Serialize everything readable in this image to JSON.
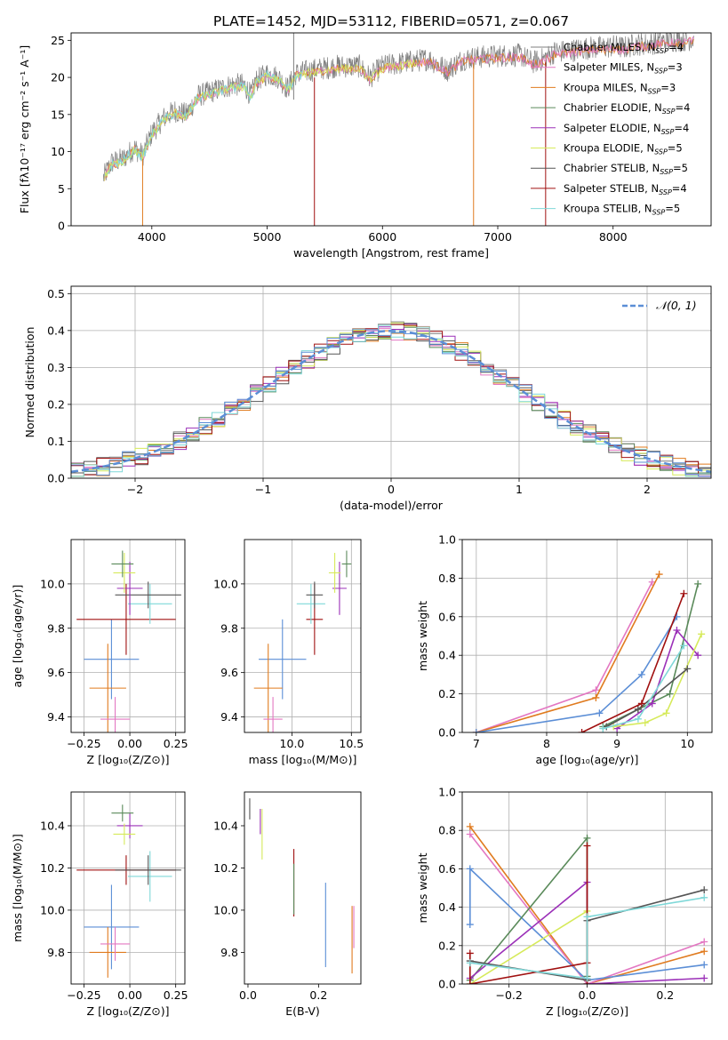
{
  "title": "PLATE=1452, MJD=53112, FIBERID=0571, z=0.067",
  "colors": {
    "cmiles": "#7f7f7f",
    "smiles": "#e377c2",
    "kmiles": "#e07b1f",
    "celodie": "#5a8a5a",
    "selodie": "#9b30b8",
    "kelodie": "#d6ea5a",
    "cstelib": "#555555",
    "sstelib": "#a01010",
    "kstelib": "#7fd8d8",
    "gauss": "#5b8ed6",
    "blue": "#5b8ed6"
  },
  "chart_data": [
    {
      "id": "spectrum",
      "type": "line",
      "title": "PLATE=1452, MJD=53112, FIBERID=0571, z=0.067",
      "xlabel": "wavelength [Angstrom, rest frame]",
      "ylabel": "Flux [fλ10⁻¹⁷ erg cm⁻² s⁻¹ A⁻¹]",
      "xlim": [
        3300,
        8850
      ],
      "ylim": [
        0,
        26
      ],
      "xticks": [
        4000,
        5000,
        6000,
        7000,
        8000
      ],
      "yticks": [
        0,
        5,
        10,
        15,
        20,
        25
      ],
      "grid": false,
      "legend_position": "top-right",
      "legend": [
        {
          "label": "Chabrier MILES, N",
          "sub": "SSP",
          "value": "=4",
          "color_key": "cmiles"
        },
        {
          "label": "Salpeter MILES, N",
          "sub": "SSP",
          "value": "=3",
          "color_key": "smiles"
        },
        {
          "label": "Kroupa MILES, N",
          "sub": "SSP",
          "value": "=3",
          "color_key": "kmiles"
        },
        {
          "label": "Chabrier ELODIE, N",
          "sub": "SSP",
          "value": "=4",
          "color_key": "celodie"
        },
        {
          "label": "Salpeter ELODIE, N",
          "sub": "SSP",
          "value": "=4",
          "color_key": "selodie"
        },
        {
          "label": "Kroupa ELODIE, N",
          "sub": "SSP",
          "value": "=5",
          "color_key": "kelodie"
        },
        {
          "label": "Chabrier STELIB, N",
          "sub": "SSP",
          "value": "=5",
          "color_key": "cstelib"
        },
        {
          "label": "Salpeter STELIB, N",
          "sub": "SSP",
          "value": "=4",
          "color_key": "sstelib"
        },
        {
          "label": "Kroupa STELIB, N",
          "sub": "SSP",
          "value": "=5",
          "color_key": "kstelib"
        }
      ],
      "spectrum_envelope": [
        [
          3580,
          6.5
        ],
        [
          3650,
          8.5
        ],
        [
          3750,
          9.0
        ],
        [
          3850,
          10.5
        ],
        [
          3920,
          9.5
        ],
        [
          4000,
          12.5
        ],
        [
          4100,
          14.5
        ],
        [
          4200,
          15.5
        ],
        [
          4300,
          15.0
        ],
        [
          4400,
          17.5
        ],
        [
          4500,
          18.0
        ],
        [
          4600,
          18.5
        ],
        [
          4700,
          19.0
        ],
        [
          4800,
          19.0
        ],
        [
          4862,
          17.5
        ],
        [
          4900,
          19.5
        ],
        [
          5000,
          20.5
        ],
        [
          5100,
          20.0
        ],
        [
          5175,
          18.5
        ],
        [
          5250,
          20.5
        ],
        [
          5400,
          21.0
        ],
        [
          5600,
          21.5
        ],
        [
          5800,
          21.5
        ],
        [
          5890,
          20.0
        ],
        [
          6000,
          21.5
        ],
        [
          6200,
          22.0
        ],
        [
          6400,
          22.5
        ],
        [
          6563,
          21.0
        ],
        [
          6700,
          22.5
        ],
        [
          6900,
          22.8
        ],
        [
          7100,
          23.0
        ],
        [
          7200,
          23.0
        ],
        [
          7300,
          22.0
        ],
        [
          7400,
          22.5
        ],
        [
          7500,
          23.5
        ],
        [
          7600,
          23.5
        ],
        [
          7700,
          23.8
        ],
        [
          7800,
          24.0
        ],
        [
          7900,
          24.0
        ],
        [
          8000,
          24.2
        ],
        [
          8100,
          24.0
        ],
        [
          8200,
          24.5
        ],
        [
          8300,
          24.5
        ],
        [
          8400,
          24.8
        ],
        [
          8500,
          25.0
        ],
        [
          8600,
          25.0
        ],
        [
          8700,
          25.2
        ]
      ],
      "spikes": [
        {
          "x": 3920,
          "y0": 0,
          "y1": 9,
          "color_key": "kmiles"
        },
        {
          "x": 5230,
          "y0": 17,
          "y1": 26,
          "color_key": "cmiles"
        },
        {
          "x": 5410,
          "y0": 0,
          "y1": 20,
          "color_key": "sstelib"
        },
        {
          "x": 6790,
          "y0": 0,
          "y1": 22,
          "color_key": "kmiles"
        },
        {
          "x": 7415,
          "y0": 0,
          "y1": 22,
          "color_key": "sstelib"
        }
      ]
    },
    {
      "id": "residuals",
      "type": "histogram",
      "xlabel": "(data-model)/error",
      "ylabel": "Normed distribution",
      "xlim": [
        -2.5,
        2.5
      ],
      "ylim": [
        0,
        0.52
      ],
      "xticks": [
        -2,
        -1,
        0,
        1,
        2
      ],
      "xticklabels": [
        "−2",
        "−1",
        "0",
        "1",
        "2"
      ],
      "yticks": [
        0.0,
        0.1,
        0.2,
        0.3,
        0.4,
        0.5
      ],
      "grid": true,
      "legend_position": "top-right",
      "legend": [
        {
          "label": "𝒩(0, 1)",
          "style": "dashed",
          "color_key": "gauss"
        }
      ],
      "bin_width": 0.1,
      "bin_start": -2.5,
      "series_colors": [
        "cmiles",
        "smiles",
        "kmiles",
        "celodie",
        "selodie",
        "kelodie",
        "cstelib",
        "sstelib",
        "kstelib",
        "blue"
      ],
      "gaussian": {
        "mean": 0,
        "sigma": 1
      }
    },
    {
      "id": "age-vs-Z",
      "type": "scatter",
      "xlabel": "Z [log₁₀(Z/Z⊙)]",
      "ylabel": "age  [log₁₀(age/yr)]",
      "xlim": [
        -0.32,
        0.3
      ],
      "ylim": [
        9.33,
        10.2
      ],
      "xticks": [
        -0.25,
        0.0,
        0.25
      ],
      "xticklabels": [
        "−0.25",
        "0.00",
        "0.25"
      ],
      "yticks": [
        9.4,
        9.6,
        9.8,
        10.0
      ],
      "grid": true,
      "points": [
        {
          "color_key": "blue",
          "x": -0.1,
          "xerr": 0.15,
          "y": 9.66,
          "yerr": 0.18
        },
        {
          "color_key": "kmiles",
          "x": -0.12,
          "xerr": 0.1,
          "y": 9.53,
          "yerr": 0.2
        },
        {
          "color_key": "smiles",
          "x": -0.08,
          "xerr": 0.08,
          "y": 9.39,
          "yerr": 0.1
        },
        {
          "color_key": "sstelib",
          "x": -0.02,
          "xerr": 0.27,
          "y": 9.84,
          "yerr": 0.16
        },
        {
          "color_key": "kstelib",
          "x": 0.11,
          "xerr": 0.12,
          "y": 9.91,
          "yerr": 0.09
        },
        {
          "color_key": "cstelib",
          "x": 0.1,
          "xerr": 0.18,
          "y": 9.95,
          "yerr": 0.06
        },
        {
          "color_key": "selodie",
          "x": 0.0,
          "xerr": 0.07,
          "y": 9.98,
          "yerr": 0.12
        },
        {
          "color_key": "kelodie",
          "x": -0.03,
          "xerr": 0.06,
          "y": 10.05,
          "yerr": 0.09
        },
        {
          "color_key": "celodie",
          "x": -0.04,
          "xerr": 0.06,
          "y": 10.09,
          "yerr": 0.06
        }
      ]
    },
    {
      "id": "age-vs-mass",
      "type": "scatter",
      "xlabel": "mass [log₁₀(M/M⊙)]",
      "ylabel": "",
      "xlim": [
        9.6,
        10.58
      ],
      "ylim": [
        9.33,
        10.2
      ],
      "xticks": [
        10.0,
        10.5
      ],
      "xticklabels": [
        "10.0",
        "10.5"
      ],
      "yticks": [
        9.4,
        9.6,
        9.8,
        10.0
      ],
      "grid": true,
      "points": [
        {
          "color_key": "blue",
          "x": 9.92,
          "xerr": 0.2,
          "y": 9.66,
          "yerr": 0.18
        },
        {
          "color_key": "kmiles",
          "x": 9.8,
          "xerr": 0.12,
          "y": 9.53,
          "yerr": 0.2
        },
        {
          "color_key": "smiles",
          "x": 9.84,
          "xerr": 0.08,
          "y": 9.39,
          "yerr": 0.1
        },
        {
          "color_key": "sstelib",
          "x": 10.19,
          "xerr": 0.07,
          "y": 9.84,
          "yerr": 0.16
        },
        {
          "color_key": "kstelib",
          "x": 10.16,
          "xerr": 0.12,
          "y": 9.91,
          "yerr": 0.09
        },
        {
          "color_key": "cstelib",
          "x": 10.19,
          "xerr": 0.07,
          "y": 9.95,
          "yerr": 0.06
        },
        {
          "color_key": "selodie",
          "x": 10.4,
          "xerr": 0.06,
          "y": 9.98,
          "yerr": 0.12
        },
        {
          "color_key": "kelodie",
          "x": 10.36,
          "xerr": 0.05,
          "y": 10.05,
          "yerr": 0.09
        },
        {
          "color_key": "celodie",
          "x": 10.46,
          "xerr": 0.04,
          "y": 10.09,
          "yerr": 0.06
        }
      ]
    },
    {
      "id": "mass-weight-vs-age",
      "type": "line",
      "xlabel": "age  [log₁₀(age/yr)]",
      "ylabel": "mass weight",
      "xlim": [
        6.8,
        10.35
      ],
      "ylim": [
        0,
        1
      ],
      "xticks": [
        7,
        8,
        9,
        10
      ],
      "yticks": [
        0.0,
        0.2,
        0.4,
        0.6,
        0.8,
        1.0
      ],
      "grid": true,
      "series": [
        {
          "color_key": "smiles",
          "x": [
            7.0,
            8.7,
            9.5
          ],
          "y": [
            0.0,
            0.22,
            0.78
          ]
        },
        {
          "color_key": "kmiles",
          "x": [
            7.0,
            8.7,
            9.6
          ],
          "y": [
            0.0,
            0.18,
            0.82
          ]
        },
        {
          "color_key": "blue",
          "x": [
            7.0,
            8.75,
            9.35,
            9.85
          ],
          "y": [
            0.0,
            0.1,
            0.3,
            0.6
          ]
        },
        {
          "color_key": "celodie",
          "x": [
            8.8,
            9.3,
            9.75,
            10.15
          ],
          "y": [
            0.03,
            0.12,
            0.2,
            0.77
          ]
        },
        {
          "color_key": "selodie",
          "x": [
            9.0,
            9.5,
            9.85,
            10.15
          ],
          "y": [
            0.02,
            0.15,
            0.53,
            0.4
          ]
        },
        {
          "color_key": "kelodie",
          "x": [
            8.95,
            9.4,
            9.7,
            10.2
          ],
          "y": [
            0.03,
            0.05,
            0.1,
            0.51
          ]
        },
        {
          "color_key": "cstelib",
          "x": [
            8.85,
            9.3,
            10.0
          ],
          "y": [
            0.03,
            0.12,
            0.33
          ]
        },
        {
          "color_key": "sstelib",
          "x": [
            8.5,
            9.35,
            9.95
          ],
          "y": [
            0.0,
            0.15,
            0.72
          ]
        },
        {
          "color_key": "kstelib",
          "x": [
            8.8,
            9.3,
            9.95
          ],
          "y": [
            0.02,
            0.07,
            0.45
          ]
        }
      ]
    },
    {
      "id": "mass-vs-Z",
      "type": "scatter",
      "xlabel": "Z [log₁₀(Z/Z⊙)]",
      "ylabel": "mass [log₁₀(M/M⊙)]",
      "xlim": [
        -0.32,
        0.3
      ],
      "ylim": [
        9.65,
        10.56
      ],
      "xticks": [
        -0.25,
        0.0,
        0.25
      ],
      "xticklabels": [
        "−0.25",
        "0.00",
        "0.25"
      ],
      "yticks": [
        9.8,
        10.0,
        10.2,
        10.4
      ],
      "grid": true,
      "points": [
        {
          "color_key": "blue",
          "x": -0.1,
          "xerr": 0.15,
          "y": 9.92,
          "yerr": 0.2
        },
        {
          "color_key": "kmiles",
          "x": -0.12,
          "xerr": 0.1,
          "y": 9.8,
          "yerr": 0.12
        },
        {
          "color_key": "smiles",
          "x": -0.08,
          "xerr": 0.08,
          "y": 9.84,
          "yerr": 0.08
        },
        {
          "color_key": "sstelib",
          "x": -0.02,
          "xerr": 0.27,
          "y": 10.19,
          "yerr": 0.07
        },
        {
          "color_key": "kstelib",
          "x": 0.11,
          "xerr": 0.12,
          "y": 10.16,
          "yerr": 0.12
        },
        {
          "color_key": "cstelib",
          "x": 0.1,
          "xerr": 0.18,
          "y": 10.19,
          "yerr": 0.07
        },
        {
          "color_key": "selodie",
          "x": 0.0,
          "xerr": 0.07,
          "y": 10.4,
          "yerr": 0.06
        },
        {
          "color_key": "kelodie",
          "x": -0.03,
          "xerr": 0.06,
          "y": 10.36,
          "yerr": 0.05
        },
        {
          "color_key": "celodie",
          "x": -0.04,
          "xerr": 0.06,
          "y": 10.46,
          "yerr": 0.04
        }
      ]
    },
    {
      "id": "mass-vs-EBV",
      "type": "scatter",
      "xlabel": "E(B-V)",
      "ylabel": "",
      "xlim": [
        -0.01,
        0.32
      ],
      "ylim": [
        9.65,
        10.56
      ],
      "xticks": [
        0.0,
        0.2
      ],
      "xticklabels": [
        "0.0",
        "0.2"
      ],
      "yticks": [
        9.8,
        10.0,
        10.2,
        10.4
      ],
      "grid": false,
      "points": [
        {
          "color_key": "cstelib",
          "x": 0.005,
          "y": 10.48,
          "yerr": 0.05
        },
        {
          "color_key": "kelodie",
          "x": 0.04,
          "y": 10.36,
          "yerr": 0.12
        },
        {
          "color_key": "selodie",
          "x": 0.035,
          "y": 10.42,
          "yerr": 0.06
        },
        {
          "color_key": "sstelib",
          "x": 0.13,
          "y": 10.13,
          "yerr": 0.16
        },
        {
          "color_key": "celodie",
          "x": 0.13,
          "y": 10.1,
          "yerr": 0.12
        },
        {
          "color_key": "blue",
          "x": 0.22,
          "y": 9.93,
          "yerr": 0.2
        },
        {
          "color_key": "kmiles",
          "x": 0.295,
          "y": 9.86,
          "yerr": 0.16
        },
        {
          "color_key": "smiles",
          "x": 0.3,
          "y": 9.92,
          "yerr": 0.1
        }
      ]
    },
    {
      "id": "mass-weight-vs-Z",
      "type": "line",
      "xlabel": "Z [log₁₀(Z/Z⊙)]",
      "ylabel": "mass weight",
      "xlim": [
        -0.32,
        0.32
      ],
      "ylim": [
        0,
        1
      ],
      "xticks": [
        -0.2,
        0.0,
        0.2
      ],
      "xticklabels": [
        "−0.2",
        "0.0",
        "0.2"
      ],
      "yticks": [
        0.0,
        0.2,
        0.4,
        0.6,
        0.8,
        1.0
      ],
      "grid": true,
      "series": [
        {
          "color_key": "kmiles",
          "x": [
            -0.3,
            0.0,
            0.3
          ],
          "y": [
            0.82,
            0.0,
            0.17
          ]
        },
        {
          "color_key": "smiles",
          "x": [
            -0.3,
            0.0,
            0.3
          ],
          "y": [
            0.78,
            0.0,
            0.22
          ]
        },
        {
          "color_key": "blue",
          "x": [
            -0.3,
            -0.3,
            0.0,
            0.3
          ],
          "y": [
            0.31,
            0.6,
            0.02,
            0.1
          ]
        },
        {
          "color_key": "celodie",
          "x": [
            -0.3,
            0.0,
            0.0
          ],
          "y": [
            0.02,
            0.76,
            0.04
          ]
        },
        {
          "color_key": "selodie",
          "x": [
            -0.3,
            0.0,
            0.0,
            0.3
          ],
          "y": [
            0.03,
            0.53,
            0.0,
            0.03
          ]
        },
        {
          "color_key": "kelodie",
          "x": [
            -0.3,
            0.0,
            0.0
          ],
          "y": [
            0.0,
            0.38,
            0.02
          ]
        },
        {
          "color_key": "cstelib",
          "x": [
            -0.3,
            0.0,
            0.0,
            0.3
          ],
          "y": [
            0.12,
            0.02,
            0.33,
            0.49
          ]
        },
        {
          "color_key": "sstelib",
          "x": [
            -0.3,
            -0.3,
            0.0,
            0.0,
            0.0
          ],
          "y": [
            0.16,
            0.0,
            0.11,
            0.72,
            0.0
          ]
        },
        {
          "color_key": "kstelib",
          "x": [
            -0.3,
            0.0,
            0.0,
            0.3
          ],
          "y": [
            0.11,
            0.03,
            0.35,
            0.45
          ]
        }
      ]
    }
  ]
}
